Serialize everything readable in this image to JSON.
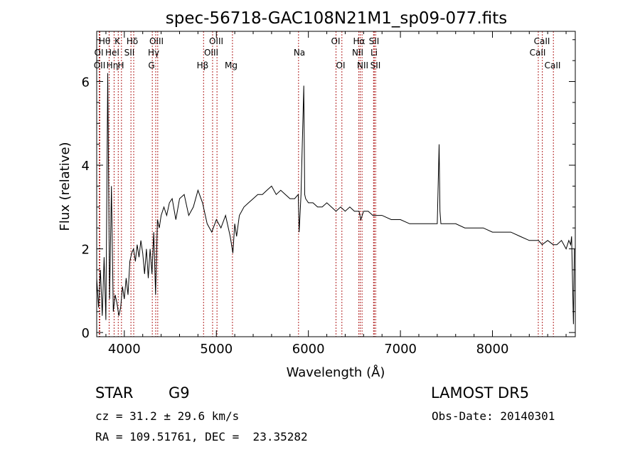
{
  "chart_data": {
    "type": "line",
    "title": "spec-56718-GAC108N21M1_sp09-077.fits",
    "xlabel": "Wavelength (Å)",
    "ylabel": "Flux (relative)",
    "xlim": [
      3700,
      8900
    ],
    "ylim": [
      -0.1,
      7.2
    ],
    "xticks": [
      4000,
      5000,
      6000,
      7000,
      8000
    ],
    "yticks": [
      0,
      2,
      4,
      6
    ],
    "grid": false,
    "series": [
      {
        "x": [
          3700,
          3720,
          3740,
          3760,
          3780,
          3800,
          3820,
          3840,
          3860,
          3880,
          3900,
          3920,
          3940,
          3960,
          3980,
          4000,
          4020,
          4040,
          4060,
          4080,
          4100,
          4120,
          4140,
          4160,
          4180,
          4200,
          4220,
          4240,
          4260,
          4280,
          4300,
          4320,
          4340,
          4360,
          4380,
          4400,
          4430,
          4460,
          4490,
          4520,
          4560,
          4600,
          4650,
          4700,
          4750,
          4800,
          4850,
          4900,
          4950,
          5000,
          5050,
          5100,
          5150,
          5180,
          5200,
          5220,
          5250,
          5300,
          5350,
          5400,
          5450,
          5500,
          5550,
          5600,
          5650,
          5700,
          5750,
          5800,
          5850,
          5890,
          5900,
          5920,
          5950,
          5960,
          5970,
          6000,
          6050,
          6100,
          6150,
          6200,
          6250,
          6300,
          6350,
          6400,
          6450,
          6500,
          6550,
          6570,
          6600,
          6650,
          6700,
          6750,
          6800,
          6900,
          7000,
          7100,
          7200,
          7300,
          7400,
          7420,
          7430,
          7440,
          7500,
          7600,
          7700,
          7800,
          7900,
          8000,
          8100,
          8200,
          8300,
          8400,
          8500,
          8540,
          8600,
          8660,
          8700,
          8750,
          8800,
          8830,
          8850,
          8860,
          8880,
          8890
        ],
        "y": [
          1.3,
          0.6,
          1.5,
          0.4,
          1.8,
          0.3,
          6.2,
          0.8,
          3.5,
          0.5,
          0.9,
          0.7,
          0.4,
          0.6,
          1.1,
          0.8,
          1.3,
          0.9,
          1.7,
          1.9,
          2.0,
          1.7,
          2.1,
          1.8,
          2.2,
          1.9,
          1.4,
          2.0,
          1.3,
          2.0,
          1.4,
          2.4,
          0.9,
          2.7,
          2.5,
          2.8,
          3.0,
          2.8,
          3.1,
          3.2,
          2.7,
          3.2,
          3.3,
          2.8,
          3.0,
          3.4,
          3.1,
          2.6,
          2.4,
          2.7,
          2.5,
          2.8,
          2.3,
          1.9,
          2.6,
          2.3,
          2.8,
          3.0,
          3.1,
          3.2,
          3.3,
          3.3,
          3.4,
          3.5,
          3.3,
          3.4,
          3.3,
          3.2,
          3.2,
          3.3,
          2.4,
          3.3,
          5.9,
          3.3,
          3.2,
          3.1,
          3.1,
          3.0,
          3.0,
          3.1,
          3.0,
          2.9,
          3.0,
          2.9,
          3.0,
          2.9,
          2.9,
          2.7,
          2.9,
          2.9,
          2.8,
          2.8,
          2.8,
          2.7,
          2.7,
          2.6,
          2.6,
          2.6,
          2.6,
          4.5,
          2.9,
          2.6,
          2.6,
          2.6,
          2.5,
          2.5,
          2.5,
          2.4,
          2.4,
          2.4,
          2.3,
          2.2,
          2.2,
          2.1,
          2.2,
          2.1,
          2.1,
          2.2,
          2.0,
          2.2,
          2.1,
          2.3,
          0.2,
          2.0
        ]
      }
    ],
    "lines": [
      {
        "labels": [
          "Hθ",
          "OII"
        ],
        "x": 3727
      },
      {
        "labels": [
          "OI"
        ],
        "x": 3734
      },
      {
        "labels": [
          "Hη"
        ],
        "x": 3835
      },
      {
        "labels": [
          "K"
        ],
        "x": 3934
      },
      {
        "labels": [
          "HeI"
        ],
        "x": 3889
      },
      {
        "labels": [
          "H"
        ],
        "x": 3969
      },
      {
        "labels": [
          "Hδ"
        ],
        "x": 4102
      },
      {
        "labels": [
          "SII"
        ],
        "x": 4072
      },
      {
        "labels": [
          "OIII"
        ],
        "x": 4363
      },
      {
        "labels": [
          "Hγ"
        ],
        "x": 4341
      },
      {
        "labels": [
          "G"
        ],
        "x": 4304
      },
      {
        "labels": [
          "Hβ"
        ],
        "x": 4861
      },
      {
        "labels": [
          "OIII"
        ],
        "x": 4959
      },
      {
        "labels": [
          "OIII"
        ],
        "x": 5007
      },
      {
        "labels": [
          "Mg"
        ],
        "x": 5175
      },
      {
        "labels": [
          "Na"
        ],
        "x": 5893
      },
      {
        "labels": [
          "OI"
        ],
        "x": 6300
      },
      {
        "labels": [
          "OI"
        ],
        "x": 6364
      },
      {
        "labels": [
          "Hα"
        ],
        "x": 6563
      },
      {
        "labels": [
          "NII"
        ],
        "x": 6548
      },
      {
        "labels": [
          "NII"
        ],
        "x": 6583
      },
      {
        "labels": [
          "SII"
        ],
        "x": 6716
      },
      {
        "labels": [
          "Li"
        ],
        "x": 6708
      },
      {
        "labels": [
          "SII"
        ],
        "x": 6731
      },
      {
        "labels": [
          "CaII"
        ],
        "x": 8498
      },
      {
        "labels": [
          "CaII"
        ],
        "x": 8542
      },
      {
        "labels": [
          "CaII"
        ],
        "x": 8662
      }
    ]
  },
  "info": {
    "class": "STAR",
    "subclass": "G9",
    "survey": "LAMOST DR5",
    "cz": "cz = 31.2 ± 29.6 km/s",
    "obs_date": "Obs-Date: 20140301",
    "coords": "RA = 109.51761, DEC =  23.35282"
  },
  "line_labels": {
    "row1": [
      "Hθ",
      "K",
      "Hδ",
      "OIII",
      "OIII",
      "OI",
      "Hα",
      "SII",
      "CaII"
    ],
    "row2": [
      "OI",
      "HeI",
      "SII",
      "Hγ",
      "OIII",
      "Na",
      "NII",
      "Li",
      "CaII"
    ],
    "row3": [
      "OII",
      "Hη",
      "H",
      "G",
      "Hβ",
      "Mg",
      "OI",
      "NII",
      "SII",
      "CaII"
    ]
  }
}
